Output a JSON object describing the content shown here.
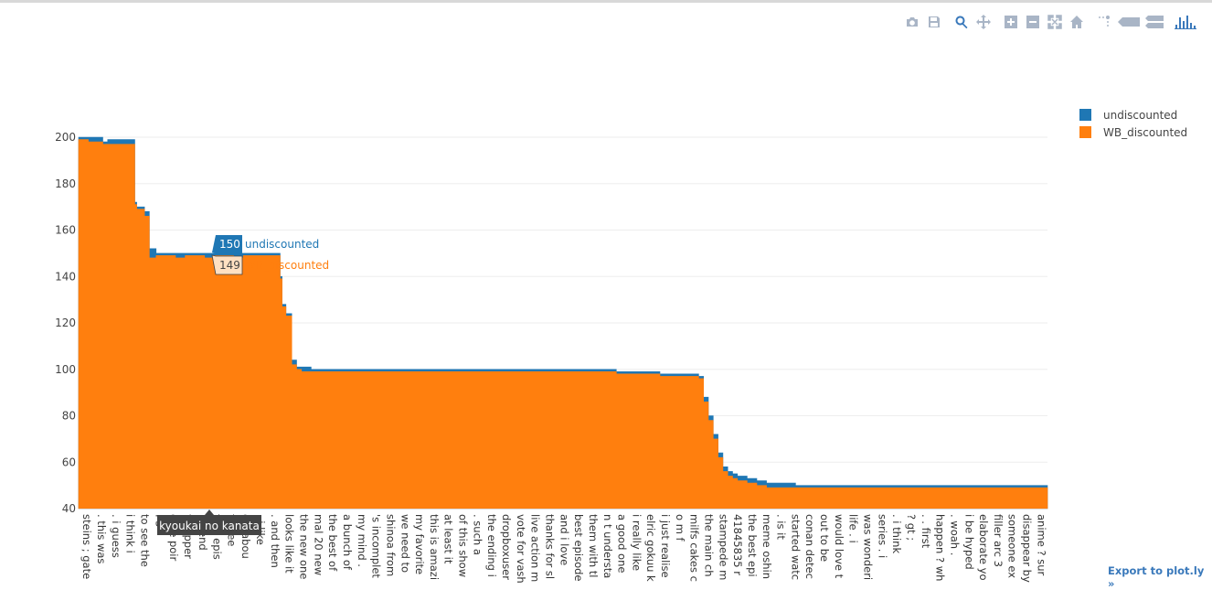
{
  "modebar": {
    "buttons": [
      "camera-icon",
      "save-icon",
      "zoom-icon",
      "pan-icon",
      "zoom-in-icon",
      "zoom-out-icon",
      "autoscale-icon",
      "home-icon",
      "spike-lines-icon",
      "hover-closest-icon",
      "hover-compare-icon",
      "plotly-logo-icon"
    ]
  },
  "export_link": "Export to plot.ly »",
  "hover": {
    "category": "kyoukai no kanata",
    "points": [
      {
        "value": "150",
        "name": "undiscounted"
      },
      {
        "value": "149",
        "name": "WB_discounted"
      }
    ]
  },
  "chart_data": {
    "type": "area",
    "title": "",
    "xlabel": "",
    "ylabel": "",
    "ylim": [
      40,
      200
    ],
    "yticks": [
      40,
      60,
      80,
      100,
      120,
      140,
      160,
      180,
      200
    ],
    "grid": true,
    "legend_position": "top-right",
    "categories": [
      "steins ; gate",
      ". this was",
      ". i guess",
      "i think i",
      "to see the",
      ". 3",
      "ome poir",
      "t happer",
      "he end",
      "first epis",
      "to see",
      "ow abou",
      ". i like",
      ". and then",
      "looks like it",
      "the new one",
      "mal 20 new",
      "the best of",
      "a bunch of",
      "my mind .",
      "'s incomplet",
      "shinoa from",
      "we need to",
      "my favorite",
      "this is amazi",
      "at least it",
      "of this show",
      ". such a",
      "the ending i",
      "dropboxuser",
      "vote for vash",
      "live action m",
      "thanks for sl",
      "and i love",
      "best episode",
      "them with tl",
      "n t understa",
      "a good one",
      "i really like",
      "elric gokuu k",
      "i just realise",
      "o m f",
      "milfs cakes c",
      "the main ch",
      "stampede m",
      "41845835 r",
      "the best epi",
      "meme oshin",
      ". is it",
      "started watc",
      "conan detec",
      "out to be",
      "would love t",
      "life . i",
      "was wonderi",
      "series . i",
      ". i think",
      "? gt ;",
      ". . first",
      "happen ? wh",
      ". woah .",
      "i be hyped",
      "elaborate yo",
      "filler arc 3",
      "someone ex",
      "disappear by",
      "anime ? sur"
    ],
    "series": [
      {
        "name": "undiscounted",
        "color": "#1f77b4",
        "values": [
          [
            0,
            200
          ],
          [
            1,
            200
          ],
          [
            2,
            200
          ],
          [
            2.5,
            198
          ],
          [
            3,
            199
          ],
          [
            4,
            199
          ],
          [
            5,
            199
          ],
          [
            5.8,
            172
          ],
          [
            6,
            170
          ],
          [
            6.8,
            168
          ],
          [
            7.3,
            152
          ],
          [
            8,
            150
          ],
          [
            9,
            150
          ],
          [
            10,
            150
          ],
          [
            11,
            150
          ],
          [
            12,
            150
          ],
          [
            13,
            150
          ],
          [
            14,
            150
          ],
          [
            15,
            150
          ],
          [
            16,
            150
          ],
          [
            17,
            150
          ],
          [
            18,
            150
          ],
          [
            19,
            150
          ],
          [
            20,
            150
          ],
          [
            20.8,
            140
          ],
          [
            21,
            128
          ],
          [
            21.4,
            124
          ],
          [
            22,
            104
          ],
          [
            22.5,
            101
          ],
          [
            23,
            101
          ],
          [
            24,
            100
          ],
          [
            25,
            100
          ],
          [
            26,
            100
          ],
          [
            27,
            100
          ],
          [
            28,
            100
          ],
          [
            29,
            100
          ],
          [
            30,
            100
          ],
          [
            31,
            100
          ],
          [
            32,
            100
          ],
          [
            33,
            100
          ],
          [
            34,
            100
          ],
          [
            35,
            100
          ],
          [
            36,
            100
          ],
          [
            37,
            100
          ],
          [
            38,
            100
          ],
          [
            39,
            100
          ],
          [
            40,
            100
          ],
          [
            41,
            100
          ],
          [
            42,
            100
          ],
          [
            43,
            100
          ],
          [
            44,
            100
          ],
          [
            45,
            100
          ],
          [
            46,
            100
          ],
          [
            47,
            100
          ],
          [
            48,
            100
          ],
          [
            49,
            100
          ],
          [
            50,
            100
          ],
          [
            51,
            100
          ],
          [
            52,
            100
          ],
          [
            53,
            100
          ],
          [
            54,
            100
          ],
          [
            55,
            100
          ],
          [
            55.5,
            99
          ],
          [
            56,
            99
          ],
          [
            57,
            99
          ],
          [
            58,
            99
          ],
          [
            59,
            99
          ],
          [
            60,
            98
          ],
          [
            61,
            98
          ],
          [
            62,
            98
          ],
          [
            63,
            98
          ],
          [
            64,
            97
          ],
          [
            64.5,
            88
          ],
          [
            65,
            80
          ],
          [
            65.5,
            72
          ],
          [
            66,
            64
          ],
          [
            66.5,
            58
          ],
          [
            67,
            56
          ],
          [
            67.5,
            55
          ],
          [
            68,
            54
          ],
          [
            69,
            53
          ],
          [
            70,
            52
          ],
          [
            71,
            51
          ],
          [
            72,
            51
          ],
          [
            73,
            51
          ],
          [
            74,
            50
          ],
          [
            75,
            50
          ],
          [
            76,
            50
          ],
          [
            77,
            50
          ],
          [
            78,
            50
          ],
          [
            79,
            50
          ],
          [
            80,
            50
          ],
          [
            81,
            50
          ],
          [
            82,
            50
          ],
          [
            83,
            50
          ],
          [
            84,
            50
          ],
          [
            85,
            50
          ],
          [
            86,
            50
          ],
          [
            87,
            50
          ],
          [
            88,
            50
          ],
          [
            89,
            50
          ],
          [
            90,
            50
          ],
          [
            91,
            50
          ],
          [
            92,
            50
          ],
          [
            93,
            50
          ],
          [
            94,
            50
          ],
          [
            95,
            50
          ],
          [
            96,
            50
          ],
          [
            97,
            50
          ],
          [
            98,
            50
          ],
          [
            99,
            50
          ],
          [
            100,
            50
          ]
        ]
      },
      {
        "name": "WB_discounted",
        "color": "#ff7f0e",
        "values": [
          [
            0,
            199
          ],
          [
            1,
            198
          ],
          [
            2,
            198
          ],
          [
            2.5,
            197
          ],
          [
            3,
            197
          ],
          [
            4,
            197
          ],
          [
            5,
            197
          ],
          [
            5.8,
            171
          ],
          [
            6,
            169
          ],
          [
            6.8,
            166
          ],
          [
            7.3,
            148
          ],
          [
            8,
            149
          ],
          [
            9,
            149
          ],
          [
            10,
            148
          ],
          [
            11,
            149
          ],
          [
            12,
            149
          ],
          [
            13,
            148
          ],
          [
            14,
            149
          ],
          [
            15,
            149
          ],
          [
            16,
            148
          ],
          [
            17,
            149
          ],
          [
            18,
            149
          ],
          [
            19,
            149
          ],
          [
            20,
            149
          ],
          [
            20.8,
            139
          ],
          [
            21,
            127
          ],
          [
            21.4,
            123
          ],
          [
            22,
            102
          ],
          [
            22.5,
            100
          ],
          [
            23,
            99
          ],
          [
            24,
            99
          ],
          [
            25,
            99
          ],
          [
            26,
            99
          ],
          [
            27,
            99
          ],
          [
            28,
            99
          ],
          [
            29,
            99
          ],
          [
            30,
            99
          ],
          [
            31,
            99
          ],
          [
            32,
            99
          ],
          [
            33,
            99
          ],
          [
            34,
            99
          ],
          [
            35,
            99
          ],
          [
            36,
            99
          ],
          [
            37,
            99
          ],
          [
            38,
            99
          ],
          [
            39,
            99
          ],
          [
            40,
            99
          ],
          [
            41,
            99
          ],
          [
            42,
            99
          ],
          [
            43,
            99
          ],
          [
            44,
            99
          ],
          [
            45,
            99
          ],
          [
            46,
            99
          ],
          [
            47,
            99
          ],
          [
            48,
            99
          ],
          [
            49,
            99
          ],
          [
            50,
            99
          ],
          [
            51,
            99
          ],
          [
            52,
            99
          ],
          [
            53,
            99
          ],
          [
            54,
            99
          ],
          [
            55,
            99
          ],
          [
            55.5,
            98
          ],
          [
            56,
            98
          ],
          [
            57,
            98
          ],
          [
            58,
            98
          ],
          [
            59,
            98
          ],
          [
            60,
            97
          ],
          [
            61,
            97
          ],
          [
            62,
            97
          ],
          [
            63,
            97
          ],
          [
            64,
            96
          ],
          [
            64.5,
            86
          ],
          [
            65,
            78
          ],
          [
            65.5,
            70
          ],
          [
            66,
            62
          ],
          [
            66.5,
            56
          ],
          [
            67,
            54
          ],
          [
            67.5,
            53
          ],
          [
            68,
            52
          ],
          [
            69,
            51
          ],
          [
            70,
            50
          ],
          [
            71,
            49
          ],
          [
            72,
            49
          ],
          [
            73,
            49
          ],
          [
            74,
            49
          ],
          [
            75,
            49
          ],
          [
            76,
            49
          ],
          [
            77,
            49
          ],
          [
            78,
            49
          ],
          [
            79,
            49
          ],
          [
            80,
            49
          ],
          [
            81,
            49
          ],
          [
            82,
            49
          ],
          [
            83,
            49
          ],
          [
            84,
            49
          ],
          [
            85,
            49
          ],
          [
            86,
            49
          ],
          [
            87,
            49
          ],
          [
            88,
            49
          ],
          [
            89,
            49
          ],
          [
            90,
            49
          ],
          [
            91,
            49
          ],
          [
            92,
            49
          ],
          [
            93,
            49
          ],
          [
            94,
            49
          ],
          [
            95,
            49
          ],
          [
            96,
            49
          ],
          [
            97,
            49
          ],
          [
            98,
            49
          ],
          [
            99,
            49
          ],
          [
            100,
            49
          ]
        ]
      }
    ]
  }
}
